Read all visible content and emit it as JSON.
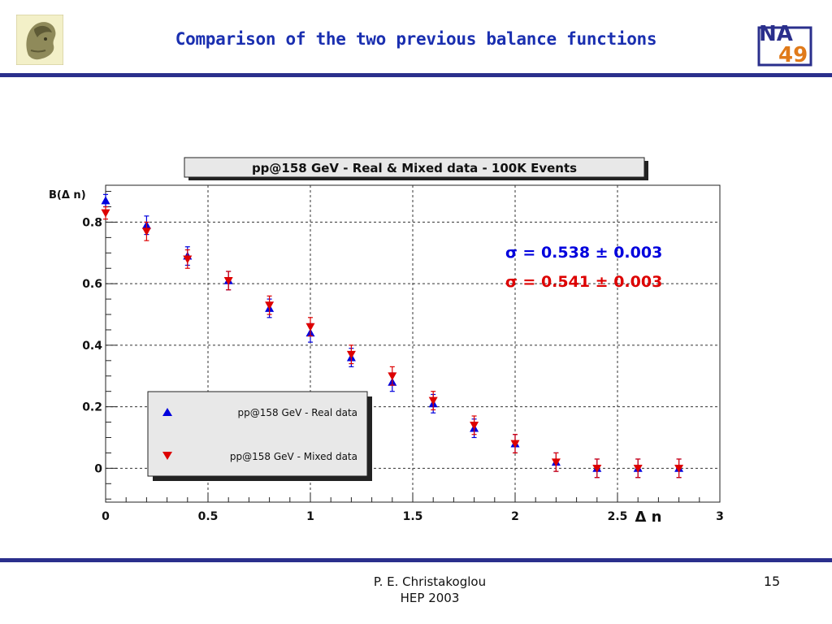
{
  "header": {
    "title": "Comparison of the two previous balance functions",
    "logo_left_icon": "athena-head-icon",
    "logo_right_text_top": "NA",
    "logo_right_text_bottom": "49"
  },
  "footer": {
    "author": "P. E. Christakoglou",
    "event": "HEP 2003",
    "page": "15"
  },
  "colors": {
    "accent": "#1a2fb0",
    "rule": "#2a2f8c",
    "real": "#0000dd",
    "mixed": "#dd0000"
  },
  "chart_data": {
    "type": "scatter",
    "title": "pp@158 GeV - Real & Mixed data - 100K Events",
    "xlabel": "Δ n",
    "ylabel": "B(Δ n)",
    "xlim": [
      0,
      3
    ],
    "ylim": [
      -0.11,
      0.92
    ],
    "x_ticks": [
      0,
      0.5,
      1,
      1.5,
      2,
      2.5,
      3
    ],
    "x_tick_labels": [
      "0",
      "0.5",
      "1",
      "1.5",
      "2",
      "2.5",
      "3"
    ],
    "y_ticks": [
      0,
      0.2,
      0.4,
      0.6,
      0.8
    ],
    "y_tick_labels": [
      "0",
      "0.2",
      "0.4",
      "0.6",
      "0.8"
    ],
    "grid": true,
    "legend_position": "bottom-left",
    "series": [
      {
        "name": "pp@158 GeV - Real data",
        "marker": "triangle-up",
        "color": "#0000dd",
        "x": [
          0,
          0.2,
          0.4,
          0.6,
          0.8,
          1.0,
          1.2,
          1.4,
          1.6,
          1.8,
          2.0,
          2.2,
          2.4,
          2.6,
          2.8
        ],
        "y": [
          0.87,
          0.79,
          0.69,
          0.61,
          0.52,
          0.44,
          0.36,
          0.28,
          0.21,
          0.13,
          0.08,
          0.02,
          0.0,
          0.0,
          0.0
        ],
        "err": [
          0.02,
          0.03,
          0.03,
          0.03,
          0.03,
          0.03,
          0.03,
          0.03,
          0.03,
          0.03,
          0.03,
          0.03,
          0.03,
          0.03,
          0.03
        ]
      },
      {
        "name": "pp@158 GeV - Mixed data",
        "marker": "triangle-down",
        "color": "#dd0000",
        "x": [
          0,
          0.2,
          0.4,
          0.6,
          0.8,
          1.0,
          1.2,
          1.4,
          1.6,
          1.8,
          2.0,
          2.2,
          2.4,
          2.6,
          2.8
        ],
        "y": [
          0.83,
          0.77,
          0.68,
          0.61,
          0.53,
          0.46,
          0.37,
          0.3,
          0.22,
          0.14,
          0.08,
          0.02,
          0.0,
          0.0,
          0.0
        ],
        "err": [
          0.02,
          0.03,
          0.03,
          0.03,
          0.03,
          0.03,
          0.03,
          0.03,
          0.03,
          0.03,
          0.03,
          0.03,
          0.03,
          0.03,
          0.03
        ]
      }
    ],
    "annotations": [
      {
        "text": "σ = 0.538 ± 0.003",
        "color": "#0000dd"
      },
      {
        "text": "σ = 0.541 ± 0.003",
        "color": "#dd0000"
      }
    ]
  }
}
